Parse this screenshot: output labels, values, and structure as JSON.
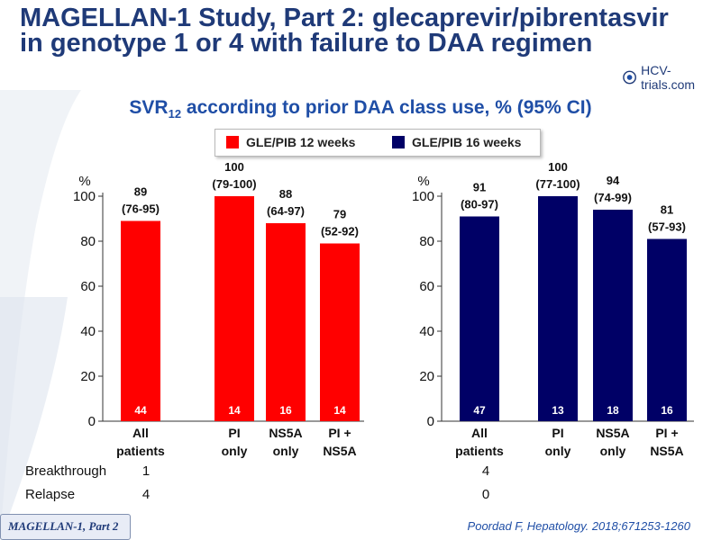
{
  "header": {
    "title_line1": "MAGELLAN-1 Study, Part 2: glecaprevir/pibrentasvir",
    "title_line2": "in genotype 1 or 4 with failure to DAA regimen",
    "logo_text": "HCV-trials.com"
  },
  "subtitle": {
    "prefix": "SVR",
    "sub": "12",
    "suffix": " according to prior DAA class use, % (95% CI)"
  },
  "legend": [
    {
      "label": "GLE/PIB 12 weeks",
      "color": "#ff0000"
    },
    {
      "label": "GLE/PIB 16 weeks",
      "color": "#000066"
    }
  ],
  "chart_data": [
    {
      "type": "bar",
      "series_name": "GLE/PIB 12 weeks",
      "color": "#ff0000",
      "categories": [
        [
          "All",
          "patients"
        ],
        [
          "PI",
          "only"
        ],
        [
          "NS5A",
          "only"
        ],
        [
          "PI +",
          "NS5A"
        ]
      ],
      "values": [
        89,
        100,
        88,
        79
      ],
      "ci": [
        "(76-95)",
        "(79-100)",
        "(64-97)",
        "(52-92)"
      ],
      "n": [
        44,
        14,
        16,
        14
      ],
      "ylabel": "%",
      "ylim": [
        0,
        100
      ],
      "yticks": [
        0,
        20,
        40,
        60,
        80,
        100
      ]
    },
    {
      "type": "bar",
      "series_name": "GLE/PIB 16 weeks",
      "color": "#000066",
      "categories": [
        [
          "All",
          "patients"
        ],
        [
          "PI",
          "only"
        ],
        [
          "NS5A",
          "only"
        ],
        [
          "PI +",
          "NS5A"
        ]
      ],
      "values": [
        91,
        100,
        94,
        81
      ],
      "ci": [
        "(80-97)",
        "(77-100)",
        "(74-99)",
        "(57-93)"
      ],
      "n": [
        47,
        13,
        18,
        16
      ],
      "ylabel": "%",
      "ylim": [
        0,
        100
      ],
      "yticks": [
        0,
        20,
        40,
        60,
        80,
        100
      ]
    }
  ],
  "outcomes": {
    "breakthrough_label": "Breakthrough",
    "relapse_label": "Relapse",
    "breakthrough_12w": "1",
    "breakthrough_16w": "4",
    "relapse_12w": "4",
    "relapse_16w": "0"
  },
  "footer": {
    "study_label": "MAGELLAN-1,  Part 2",
    "citation": "Poordad F, Hepatology. 2018;671253-1260"
  }
}
